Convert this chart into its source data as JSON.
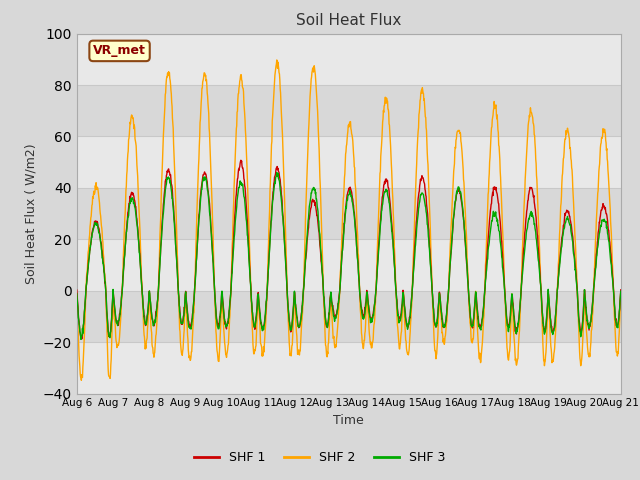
{
  "title": "Soil Heat Flux",
  "xlabel": "Time",
  "ylabel": "Soil Heat Flux ( W/m2)",
  "ylim": [
    -40,
    100
  ],
  "series_colors": [
    "#cc0000",
    "#ffa500",
    "#00aa00"
  ],
  "series_labels": [
    "SHF 1",
    "SHF 2",
    "SHF 3"
  ],
  "x_tick_labels": [
    "Aug 6",
    "Aug 7",
    "Aug 8",
    "Aug 9",
    "Aug 10",
    "Aug 11",
    "Aug 12",
    "Aug 13",
    "Aug 14",
    "Aug 15",
    "Aug 16",
    "Aug 17",
    "Aug 18",
    "Aug 19",
    "Aug 20",
    "Aug 21"
  ],
  "yticks": [
    -40,
    -20,
    0,
    20,
    40,
    60,
    80,
    100
  ],
  "background_color": "#d8d8d8",
  "plot_bg_color": "#e8e8e8",
  "band_light": "#e8e8e8",
  "band_dark": "#d8d8d8",
  "grid_color": "#c8c8c8",
  "annotation_text": "VR_met",
  "annotation_box_color": "#ffffcc",
  "annotation_border_color": "#8b4513",
  "shf2_amps": [
    40,
    68,
    85,
    85,
    83,
    89,
    87,
    65,
    75,
    78,
    63,
    72,
    70,
    62,
    62
  ],
  "shf2_mins": [
    -35,
    -22,
    -25,
    -27,
    -25,
    -25,
    -25,
    -22,
    -22,
    -25,
    -20,
    -27,
    -28,
    -28,
    -25
  ],
  "shf1_amps": [
    27,
    38,
    47,
    46,
    50,
    48,
    35,
    40,
    43,
    44,
    39,
    40,
    40,
    31,
    33
  ],
  "shf1_mins": [
    -18,
    -13,
    -13,
    -14,
    -14,
    -15,
    -14,
    -10,
    -11,
    -14,
    -14,
    -14,
    -16,
    -16,
    -14
  ],
  "shf3_amps": [
    26,
    36,
    44,
    44,
    42,
    45,
    40,
    38,
    39,
    38,
    40,
    30,
    30,
    28,
    28
  ],
  "shf3_mins": [
    -18,
    -13,
    -13,
    -15,
    -14,
    -15,
    -14,
    -11,
    -12,
    -14,
    -14,
    -15,
    -16,
    -17,
    -14
  ],
  "n_days": 15,
  "pts_per_day": 96
}
